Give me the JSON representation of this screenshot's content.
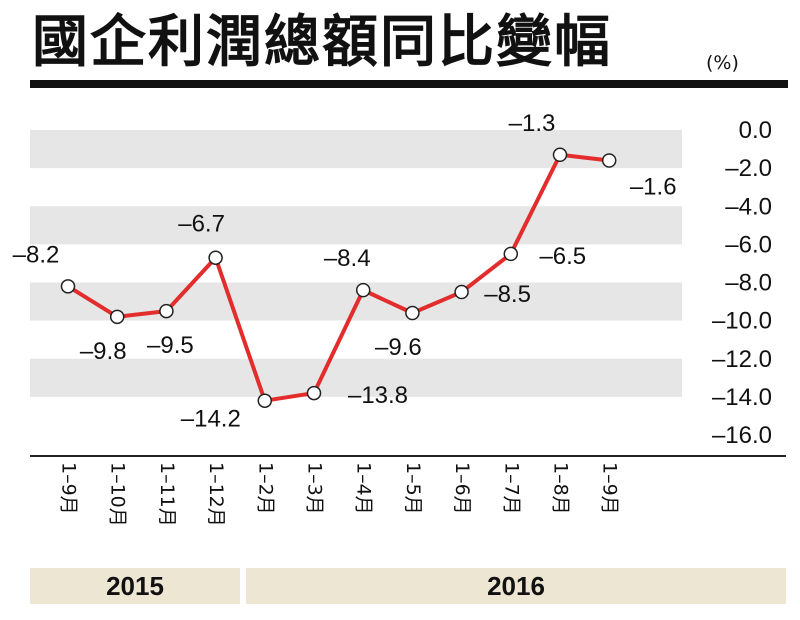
{
  "header": {
    "title": "國企利潤總額同比變幅",
    "unit": "(%)"
  },
  "chart_data": {
    "type": "line",
    "title": "國企利潤總額同比變幅",
    "ylabel": "(%)",
    "ylim": [
      -16.0,
      0.0
    ],
    "y_ticks": [
      "0.0",
      "–2.0",
      "–4.0",
      "–6.0",
      "–8.0",
      "–10.0",
      "–12.0",
      "–14.0",
      "–16.0"
    ],
    "categories": [
      "1–9月",
      "1–10月",
      "1–11月",
      "1–12月",
      "1–2月",
      "1–3月",
      "1–4月",
      "1–5月",
      "1–6月",
      "1–7月",
      "1–8月",
      "1–9月"
    ],
    "values": [
      -8.2,
      -9.8,
      -9.5,
      -6.7,
      -14.2,
      -13.8,
      -8.4,
      -9.6,
      -8.5,
      -6.5,
      -1.3,
      -1.6
    ],
    "value_labels": [
      "–8.2",
      "–9.8",
      "–9.5",
      "–6.7",
      "–14.2",
      "–13.8",
      "–8.4",
      "–9.6",
      "–8.5",
      "–6.5",
      "–1.3",
      "–1.6"
    ],
    "line_color": "#e32d2d",
    "band_color": "#e6e6e6",
    "grid": "alternating bands",
    "y_axis_position": "right"
  },
  "years": [
    {
      "label": "2015"
    },
    {
      "label": "2016"
    }
  ]
}
